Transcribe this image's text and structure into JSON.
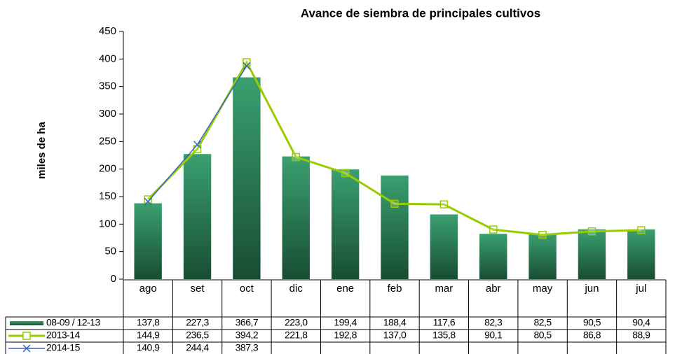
{
  "chart_data": {
    "type": "bar_line_table",
    "title": "Avance de siembra de principales cultivos",
    "y_label": "miles de ha",
    "categories": [
      "ago",
      "set",
      "oct",
      "dic",
      "ene",
      "feb",
      "mar",
      "abr",
      "may",
      "jun",
      "jul"
    ],
    "ylim": [
      0,
      450
    ],
    "yticks": [
      0,
      50,
      100,
      150,
      200,
      250,
      300,
      350,
      400,
      450
    ],
    "series": [
      {
        "name": "08-09 / 12-13",
        "type": "bar",
        "color": "#2e8b57",
        "values": [
          137.8,
          227.3,
          366.7,
          223.0,
          199.4,
          188.4,
          117.6,
          82.3,
          82.5,
          90.5,
          90.4
        ],
        "value_labels": [
          "137,8",
          "227,3",
          "366,7",
          "223,0",
          "199,4",
          "188,4",
          "117,6",
          "82,3",
          "82,5",
          "90,5",
          "90,4"
        ]
      },
      {
        "name": "2013-14",
        "type": "line",
        "marker": "square",
        "color": "#99cc00",
        "values": [
          144.9,
          236.5,
          394.2,
          221.8,
          192.8,
          137.0,
          135.8,
          90.1,
          80.5,
          86.8,
          88.9
        ],
        "value_labels": [
          "144,9",
          "236,5",
          "394,2",
          "221,8",
          "192,8",
          "137,0",
          "135,8",
          "90,1",
          "80,5",
          "86,8",
          "88,9"
        ]
      },
      {
        "name": "2014-15",
        "type": "line",
        "marker": "x",
        "color": "#3366cc",
        "values": [
          140.9,
          244.4,
          387.3,
          null,
          null,
          null,
          null,
          null,
          null,
          null,
          null
        ],
        "value_labels": [
          "140,9",
          "244,4",
          "387,3",
          null,
          null,
          null,
          null,
          null,
          null,
          null,
          null
        ]
      }
    ]
  }
}
